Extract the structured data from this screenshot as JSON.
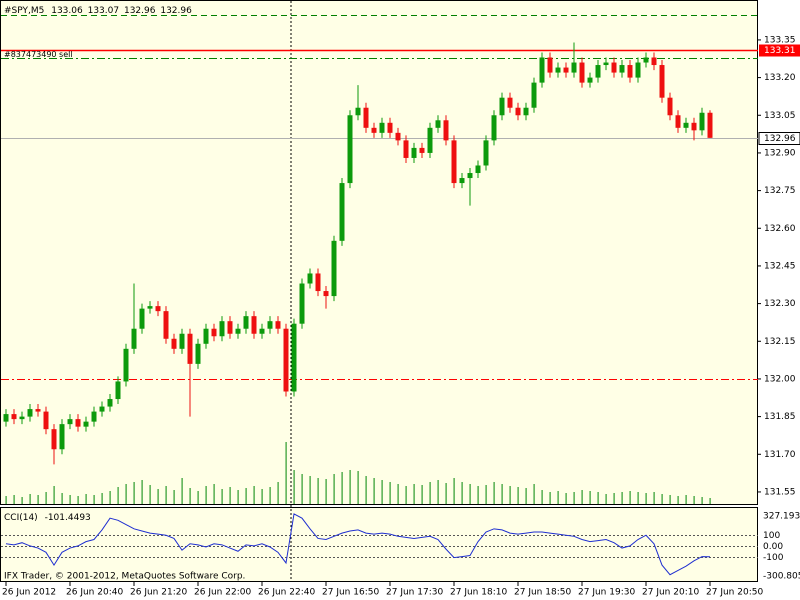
{
  "chart_data": {
    "type": "candlestick",
    "symbol": "#SPY,M5",
    "copyright": "IFX Trader, © 2001-2012, MetaQuotes Software Corp.",
    "categories": [
      "26 Jun 2012",
      null,
      null,
      null,
      null,
      null,
      null,
      null,
      "26 Jun 20:40",
      null,
      null,
      null,
      null,
      null,
      null,
      null,
      "26 Jun 21:20",
      null,
      null,
      null,
      null,
      null,
      null,
      null,
      "26 Jun 22:00",
      null,
      null,
      null,
      null,
      null,
      null,
      null,
      "26 Jun 22:40",
      null,
      null,
      null,
      null,
      null,
      null,
      null,
      "27 Jun 16:50",
      null,
      null,
      null,
      null,
      null,
      null,
      null,
      "27 Jun 17:30",
      null,
      null,
      null,
      null,
      null,
      null,
      null,
      "27 Jun 18:10",
      null,
      null,
      null,
      null,
      null,
      null,
      null,
      "27 Jun 18:50",
      null,
      null,
      null,
      null,
      null,
      null,
      null,
      "27 Jun 19:30",
      null,
      null,
      null,
      null,
      null,
      null,
      null,
      "27 Jun 20:10",
      null,
      null,
      null,
      null,
      null,
      null,
      null,
      "27 Jun 20:50"
    ],
    "open": [
      131.83,
      131.86,
      131.84,
      131.85,
      131.88,
      131.87,
      131.8,
      131.72,
      131.82,
      131.84,
      131.81,
      131.83,
      131.87,
      131.89,
      131.92,
      131.99,
      132.12,
      132.2,
      132.28,
      132.29,
      132.27,
      132.16,
      132.12,
      132.18,
      132.06,
      132.14,
      132.2,
      132.17,
      132.23,
      132.18,
      132.2,
      132.25,
      132.18,
      132.2,
      132.23,
      132.2,
      131.95,
      132.22,
      132.38,
      132.42,
      132.35,
      132.33,
      132.55,
      132.78,
      133.05,
      133.08,
      133.0,
      132.98,
      133.02,
      132.98,
      132.95,
      132.88,
      132.92,
      132.9,
      133.0,
      133.03,
      132.95,
      132.78,
      132.8,
      132.82,
      132.85,
      132.95,
      133.05,
      133.12,
      133.08,
      133.05,
      133.08,
      133.18,
      133.28,
      133.22,
      133.24,
      133.22,
      133.26,
      133.18,
      133.2,
      133.25,
      133.26,
      133.22,
      133.25,
      133.2,
      133.26,
      133.28,
      133.25,
      133.12,
      133.05,
      133.0,
      133.02,
      132.99,
      133.06
    ],
    "high": [
      131.88,
      131.88,
      131.87,
      131.9,
      131.9,
      131.89,
      131.82,
      131.84,
      131.86,
      131.86,
      131.85,
      131.89,
      131.91,
      131.94,
      132.01,
      132.14,
      132.38,
      132.3,
      132.31,
      132.31,
      132.29,
      132.18,
      132.2,
      132.2,
      132.16,
      132.22,
      132.22,
      132.25,
      132.25,
      132.22,
      132.27,
      132.27,
      132.22,
      132.25,
      132.25,
      132.22,
      132.24,
      132.4,
      132.44,
      132.44,
      132.37,
      132.57,
      132.8,
      133.07,
      133.17,
      133.1,
      133.02,
      133.04,
      133.04,
      133.0,
      132.97,
      132.94,
      132.94,
      133.02,
      133.05,
      133.05,
      132.97,
      132.82,
      132.84,
      132.87,
      132.97,
      133.07,
      133.14,
      133.14,
      133.1,
      133.1,
      133.2,
      133.3,
      133.3,
      133.26,
      133.26,
      133.34,
      133.28,
      133.22,
      133.27,
      133.28,
      133.28,
      133.27,
      133.27,
      133.28,
      133.3,
      133.3,
      133.27,
      133.14,
      133.07,
      133.04,
      133.04,
      133.08,
      133.07
    ],
    "low": [
      131.81,
      131.82,
      131.82,
      131.83,
      131.85,
      131.78,
      131.66,
      131.7,
      131.8,
      131.79,
      131.79,
      131.81,
      131.85,
      131.87,
      131.9,
      131.97,
      132.1,
      132.18,
      132.26,
      132.25,
      132.14,
      132.1,
      132.1,
      131.85,
      132.04,
      132.12,
      132.15,
      132.15,
      132.16,
      132.16,
      132.18,
      132.16,
      132.16,
      132.18,
      132.18,
      131.93,
      131.93,
      132.2,
      132.36,
      132.33,
      132.28,
      132.31,
      132.53,
      132.76,
      133.03,
      132.98,
      132.96,
      132.96,
      132.96,
      132.93,
      132.86,
      132.86,
      132.88,
      132.88,
      132.98,
      132.93,
      132.76,
      132.76,
      132.69,
      132.8,
      132.83,
      132.93,
      133.03,
      133.06,
      133.03,
      133.03,
      133.06,
      133.16,
      133.2,
      133.2,
      133.2,
      133.2,
      133.16,
      133.16,
      133.18,
      133.23,
      133.2,
      133.2,
      133.18,
      133.18,
      133.24,
      133.23,
      133.1,
      133.03,
      132.98,
      132.98,
      132.95,
      132.97,
      132.96
    ],
    "close": [
      131.86,
      131.84,
      131.85,
      131.88,
      131.87,
      131.8,
      131.72,
      131.82,
      131.84,
      131.81,
      131.83,
      131.87,
      131.89,
      131.92,
      131.99,
      132.12,
      132.2,
      132.28,
      132.29,
      132.27,
      132.16,
      132.12,
      132.18,
      132.06,
      132.14,
      132.2,
      132.17,
      132.23,
      132.18,
      132.2,
      132.25,
      132.18,
      132.2,
      132.23,
      132.2,
      131.95,
      132.22,
      132.38,
      132.42,
      132.35,
      132.33,
      132.55,
      132.78,
      133.05,
      133.08,
      133.0,
      132.98,
      133.02,
      132.98,
      132.95,
      132.88,
      132.92,
      132.9,
      133.0,
      133.03,
      132.95,
      132.78,
      132.8,
      132.82,
      132.85,
      132.95,
      133.05,
      133.12,
      133.08,
      133.05,
      133.08,
      133.18,
      133.28,
      133.22,
      133.24,
      133.22,
      133.26,
      133.18,
      133.2,
      133.25,
      133.26,
      133.22,
      133.25,
      133.2,
      133.26,
      133.28,
      133.25,
      133.12,
      133.05,
      133.0,
      133.02,
      132.99,
      133.06,
      132.96
    ],
    "volume": [
      8,
      9,
      7,
      10,
      9,
      12,
      18,
      11,
      9,
      8,
      10,
      9,
      11,
      13,
      17,
      20,
      22,
      24,
      19,
      15,
      18,
      14,
      26,
      16,
      13,
      18,
      20,
      15,
      17,
      14,
      16,
      18,
      15,
      17,
      22,
      62,
      34,
      30,
      28,
      26,
      25,
      30,
      32,
      34,
      33,
      28,
      26,
      24,
      22,
      20,
      18,
      20,
      19,
      22,
      24,
      21,
      26,
      22,
      20,
      18,
      19,
      22,
      20,
      18,
      17,
      16,
      20,
      14,
      12,
      13,
      11,
      12,
      14,
      13,
      12,
      10,
      11,
      12,
      13,
      12,
      11,
      12,
      10,
      9,
      8,
      9,
      8,
      7,
      6
    ],
    "up_color": "#0c9a0c",
    "down_color": "#ee1010",
    "volume_color": "#2a9a2a",
    "ylim": [
      131.502,
      133.509
    ],
    "yticks": [
      133.35,
      {
        "value": 133.2,
        "label": "133.20"
      },
      133.05,
      {
        "value": 132.9,
        "label": "132.90"
      },
      132.75,
      {
        "value": 132.6,
        "label": "132.60"
      },
      132.45,
      {
        "value": 132.3,
        "label": "132.30"
      },
      132.15,
      {
        "value": 132.0,
        "label": "132.00"
      },
      131.85,
      {
        "value": 131.7,
        "label": "131.70"
      },
      131.55
    ],
    "grid": false,
    "levels": [
      {
        "value": 133.45,
        "color": "#008000",
        "style": "dash"
      },
      {
        "value": 133.31,
        "color": "#ff0000",
        "style": "solid",
        "name": "#837473490 sell",
        "boxed": true
      },
      {
        "value": 133.28,
        "color": "#008000",
        "style": "dashdot"
      },
      {
        "value": 132.0,
        "color": "#ff0000",
        "style": "dashdot"
      }
    ],
    "cci": {
      "name": "CCI(14)",
      "color": "#1f2fd0",
      "ylim": [
        -300.805,
        327.1936
      ],
      "yticks": [
        100,
        {
          "value": 0,
          "label": "0.00"
        },
        -100
      ],
      "values": [
        20,
        10,
        30,
        0,
        -20,
        -60,
        -180,
        -60,
        -20,
        0,
        40,
        60,
        150,
        260,
        240,
        200,
        160,
        140,
        120,
        110,
        100,
        70,
        -40,
        20,
        10,
        -10,
        20,
        10,
        -20,
        -50,
        10,
        0,
        20,
        -10,
        -60,
        -160,
        300,
        260,
        160,
        70,
        60,
        90,
        120,
        140,
        150,
        120,
        110,
        120,
        110,
        90,
        80,
        70,
        80,
        90,
        60,
        -30,
        -110,
        -100,
        -90,
        40,
        130,
        160,
        150,
        120,
        110,
        120,
        130,
        130,
        120,
        110,
        100,
        90,
        60,
        40,
        50,
        60,
        30,
        -20,
        0,
        60,
        100,
        20,
        -180,
        -270,
        -230,
        -190,
        -140,
        -100,
        -101.4493
      ]
    }
  }
}
